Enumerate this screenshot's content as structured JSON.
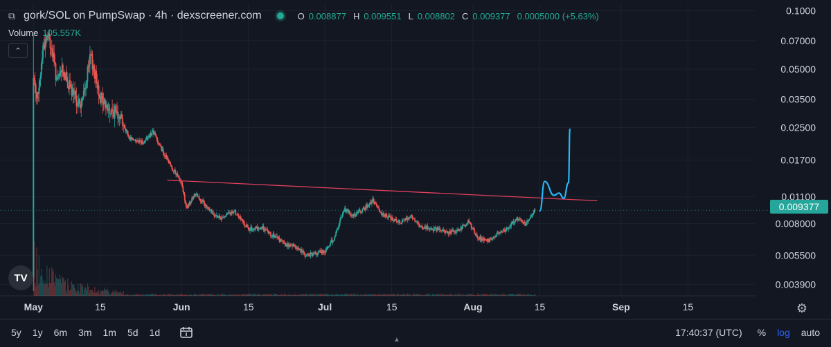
{
  "header": {
    "title": "gork/SOL on PumpSwap · 4h · dexscreener.com",
    "ohlc": [
      {
        "k": "O",
        "v": "0.008877"
      },
      {
        "k": "H",
        "v": "0.009551"
      },
      {
        "k": "L",
        "v": "0.008802"
      },
      {
        "k": "C",
        "v": "0.009377"
      },
      {
        "k": "",
        "v": "0.0005000 (+5.63%)"
      }
    ],
    "volume_label": "Volume",
    "volume_value": "105.557K"
  },
  "price_tag": "0.009377",
  "ranges": [
    "5y",
    "1y",
    "6m",
    "3m",
    "1m",
    "5d",
    "1d"
  ],
  "clock": "17:40:37 (UTC)",
  "options": {
    "percent": "%",
    "log": "log",
    "auto": "auto"
  },
  "colors": {
    "up": "#26a69a",
    "down": "#ef5350",
    "trendline": "#e0405c",
    "drawing": "#29b6f6",
    "bg": "#131722"
  },
  "chart_data": {
    "type": "candlestick",
    "yscale": "log",
    "ylim": [
      0.0034,
      0.108
    ],
    "y_ticks": [
      0.1,
      0.07,
      0.05,
      0.035,
      0.025,
      0.017,
      0.011,
      0.008,
      0.0055,
      0.0039
    ],
    "y_tick_labels": [
      "0.1000",
      "0.07000",
      "0.05000",
      "0.03500",
      "0.02500",
      "0.01700",
      "0.01100",
      "0.008000",
      "0.005500",
      "0.003900"
    ],
    "x_range": [
      "2025-04-24",
      "2025-09-29"
    ],
    "x_ticks": [
      {
        "date": "2025-05-01",
        "label": "May",
        "bold": true
      },
      {
        "date": "2025-05-15",
        "label": "15",
        "bold": false
      },
      {
        "date": "2025-06-01",
        "label": "Jun",
        "bold": true
      },
      {
        "date": "2025-06-15",
        "label": "15",
        "bold": false
      },
      {
        "date": "2025-07-01",
        "label": "Jul",
        "bold": true
      },
      {
        "date": "2025-07-15",
        "label": "15",
        "bold": false
      },
      {
        "date": "2025-08-01",
        "label": "Aug",
        "bold": true
      },
      {
        "date": "2025-08-15",
        "label": "15",
        "bold": false
      },
      {
        "date": "2025-09-01",
        "label": "Sep",
        "bold": true
      },
      {
        "date": "2025-09-15",
        "label": "15",
        "bold": false
      }
    ],
    "close_path": [
      [
        "2025-05-01",
        0.004
      ],
      [
        "2025-05-01",
        0.045
      ],
      [
        "2025-05-02",
        0.035
      ],
      [
        "2025-05-03",
        0.065
      ],
      [
        "2025-05-04",
        0.075
      ],
      [
        "2025-05-05",
        0.06
      ],
      [
        "2025-05-06",
        0.042
      ],
      [
        "2025-05-07",
        0.05
      ],
      [
        "2025-05-09",
        0.038
      ],
      [
        "2025-05-11",
        0.032
      ],
      [
        "2025-05-13",
        0.058
      ],
      [
        "2025-05-15",
        0.036
      ],
      [
        "2025-05-17",
        0.03
      ],
      [
        "2025-05-19",
        0.03
      ],
      [
        "2025-05-21",
        0.022
      ],
      [
        "2025-05-24",
        0.021
      ],
      [
        "2025-05-26",
        0.024
      ],
      [
        "2025-05-28",
        0.019
      ],
      [
        "2025-05-30",
        0.0155
      ],
      [
        "2025-06-01",
        0.013
      ],
      [
        "2025-06-02",
        0.0095
      ],
      [
        "2025-06-04",
        0.0115
      ],
      [
        "2025-06-06",
        0.0098
      ],
      [
        "2025-06-09",
        0.0085
      ],
      [
        "2025-06-12",
        0.0093
      ],
      [
        "2025-06-15",
        0.0075
      ],
      [
        "2025-06-18",
        0.0076
      ],
      [
        "2025-06-20",
        0.007
      ],
      [
        "2025-06-23",
        0.0062
      ],
      [
        "2025-06-25",
        0.0061
      ],
      [
        "2025-06-27",
        0.0055
      ],
      [
        "2025-06-29",
        0.0056
      ],
      [
        "2025-07-01",
        0.0058
      ],
      [
        "2025-07-03",
        0.0068
      ],
      [
        "2025-07-05",
        0.0095
      ],
      [
        "2025-07-07",
        0.0088
      ],
      [
        "2025-07-09",
        0.0095
      ],
      [
        "2025-07-11",
        0.0105
      ],
      [
        "2025-07-13",
        0.009
      ],
      [
        "2025-07-15",
        0.0085
      ],
      [
        "2025-07-17",
        0.0082
      ],
      [
        "2025-07-19",
        0.0088
      ],
      [
        "2025-07-21",
        0.0077
      ],
      [
        "2025-07-24",
        0.0075
      ],
      [
        "2025-07-27",
        0.0072
      ],
      [
        "2025-07-29",
        0.0074
      ],
      [
        "2025-07-31",
        0.0082
      ],
      [
        "2025-08-02",
        0.0068
      ],
      [
        "2025-08-04",
        0.0065
      ],
      [
        "2025-08-06",
        0.007
      ],
      [
        "2025-08-08",
        0.0075
      ],
      [
        "2025-08-10",
        0.0085
      ],
      [
        "2025-08-12",
        0.008
      ],
      [
        "2025-08-13",
        0.0087
      ],
      [
        "2025-08-14",
        0.009377
      ]
    ],
    "trendline": [
      [
        "2025-05-29",
        0.0134
      ],
      [
        "2025-08-27",
        0.0105
      ]
    ],
    "drawing": [
      [
        "2025-08-15",
        0.0093
      ],
      [
        "2025-08-16",
        0.0132
      ],
      [
        "2025-08-18",
        0.0112
      ],
      [
        "2025-08-19",
        0.0115
      ],
      [
        "2025-08-20",
        0.0108
      ],
      [
        "2025-08-21",
        0.013
      ],
      [
        "2025-08-21",
        0.0245
      ]
    ]
  }
}
